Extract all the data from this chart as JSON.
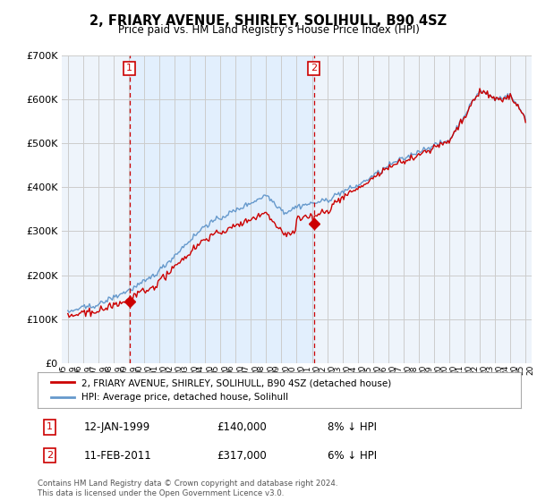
{
  "title": "2, FRIARY AVENUE, SHIRLEY, SOLIHULL, B90 4SZ",
  "subtitle": "Price paid vs. HM Land Registry's House Price Index (HPI)",
  "ylim": [
    0,
    700000
  ],
  "sale1_date_num": 1999.04,
  "sale1_price": 140000,
  "sale2_date_num": 2011.12,
  "sale2_price": 317000,
  "legend_label_red": "2, FRIARY AVENUE, SHIRLEY, SOLIHULL, B90 4SZ (detached house)",
  "legend_label_blue": "HPI: Average price, detached house, Solihull",
  "footer": "Contains HM Land Registry data © Crown copyright and database right 2024.\nThis data is licensed under the Open Government Licence v3.0.",
  "red_color": "#cc0000",
  "blue_color": "#6699cc",
  "vline_color": "#cc0000",
  "shade_color": "#ddeeff",
  "background_color": "#ffffff",
  "grid_color": "#cccccc",
  "chart_bg": "#eef4fb"
}
